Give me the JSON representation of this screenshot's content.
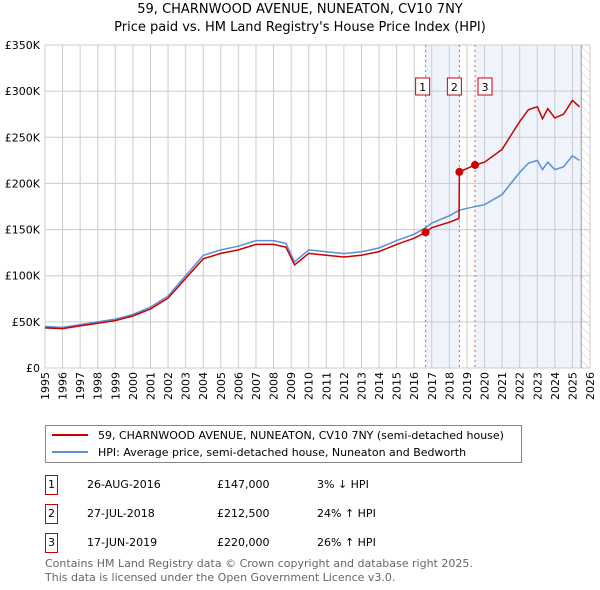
{
  "title": "59, CHARNWOOD AVENUE, NUNEATON, CV10 7NY",
  "subtitle": "Price paid vs. HM Land Registry's House Price Index (HPI)",
  "chart_data": {
    "type": "line",
    "xlim": [
      1995,
      2026
    ],
    "ylim": [
      0,
      350000
    ],
    "x_ticks": [
      1995,
      1996,
      1997,
      1998,
      1999,
      2000,
      2001,
      2002,
      2003,
      2004,
      2005,
      2006,
      2007,
      2008,
      2009,
      2010,
      2011,
      2012,
      2013,
      2014,
      2015,
      2016,
      2017,
      2018,
      2019,
      2020,
      2021,
      2022,
      2023,
      2024,
      2025,
      2026
    ],
    "y_ticks": [
      0,
      50000,
      100000,
      150000,
      200000,
      250000,
      300000,
      350000
    ],
    "y_tick_labels": [
      "£0",
      "£50K",
      "£100K",
      "£150K",
      "£200K",
      "£250K",
      "£300K",
      "£350K"
    ],
    "grid": true,
    "series": [
      {
        "name": "59, CHARNWOOD AVENUE, NUNEATON, CV10 7NY (semi-detached house)",
        "color": "#cc0000",
        "x": [
          1995,
          1996,
          1997,
          1998,
          1999,
          2000,
          2001,
          2002,
          2003,
          2004,
          2005,
          2006,
          2007,
          2008,
          2008.7,
          2009.2,
          2010,
          2011,
          2012,
          2013,
          2014,
          2015,
          2016,
          2016.65,
          2017,
          2018,
          2018.55,
          2018.57,
          2019.46,
          2020,
          2021,
          2021.5,
          2022,
          2022.5,
          2023,
          2023.3,
          2023.6,
          2024,
          2024.5,
          2025,
          2025.4
        ],
        "y": [
          43500,
          42700,
          45600,
          48500,
          51400,
          56300,
          64000,
          75700,
          97000,
          118300,
          124200,
          128000,
          133900,
          133900,
          131000,
          111600,
          124200,
          122200,
          120300,
          122200,
          126100,
          133900,
          140700,
          147000,
          152000,
          158000,
          162000,
          212500,
          220000,
          223000,
          237000,
          252000,
          267000,
          280000,
          283000,
          270000,
          281000,
          271000,
          275000,
          290000,
          283000
        ]
      },
      {
        "name": "HPI: Average price, semi-detached house, Nuneaton and Bedworth",
        "color": "#5b8fd6",
        "x": [
          1995,
          1996,
          1997,
          1998,
          1999,
          2000,
          2001,
          2002,
          2003,
          2004,
          2005,
          2006,
          2007,
          2008,
          2008.7,
          2009.2,
          2010,
          2011,
          2012,
          2013,
          2014,
          2015,
          2016,
          2016.65,
          2017,
          2018,
          2018.57,
          2019,
          2020,
          2021,
          2021.5,
          2022,
          2022.5,
          2023,
          2023.3,
          2023.6,
          2024,
          2024.5,
          2025,
          2025.4
        ],
        "y": [
          45000,
          44000,
          47000,
          50000,
          53000,
          58000,
          66000,
          78000,
          100000,
          122000,
          128000,
          132000,
          138000,
          138000,
          135000,
          115000,
          128000,
          126000,
          124000,
          126000,
          130000,
          138000,
          145000,
          152000,
          157000,
          165000,
          171000,
          173000,
          177000,
          188000,
          200000,
          212000,
          222000,
          225000,
          215000,
          223000,
          215000,
          218000,
          230000,
          225000
        ]
      }
    ],
    "sales": [
      {
        "label": "1",
        "x": 2016.65,
        "y": 147000
      },
      {
        "label": "2",
        "x": 2018.57,
        "y": 212500
      },
      {
        "label": "3",
        "x": 2019.46,
        "y": 220000
      }
    ],
    "forecast_start": 2025.5
  },
  "legend": {
    "property": "59, CHARNWOOD AVENUE, NUNEATON, CV10 7NY (semi-detached house)",
    "hpi": "HPI: Average price, semi-detached house, Nuneaton and Bedworth"
  },
  "transactions": [
    {
      "num": "1",
      "date": "26-AUG-2016",
      "price": "£147,000",
      "hpi": "3% ↓ HPI"
    },
    {
      "num": "2",
      "date": "27-JUL-2018",
      "price": "£212,500",
      "hpi": "24% ↑ HPI"
    },
    {
      "num": "3",
      "date": "17-JUN-2019",
      "price": "£220,000",
      "hpi": "26% ↑ HPI"
    }
  ],
  "footer": {
    "line1": "Contains HM Land Registry data © Crown copyright and database right 2025.",
    "line2": "This data is licensed under the Open Government Licence v3.0."
  }
}
